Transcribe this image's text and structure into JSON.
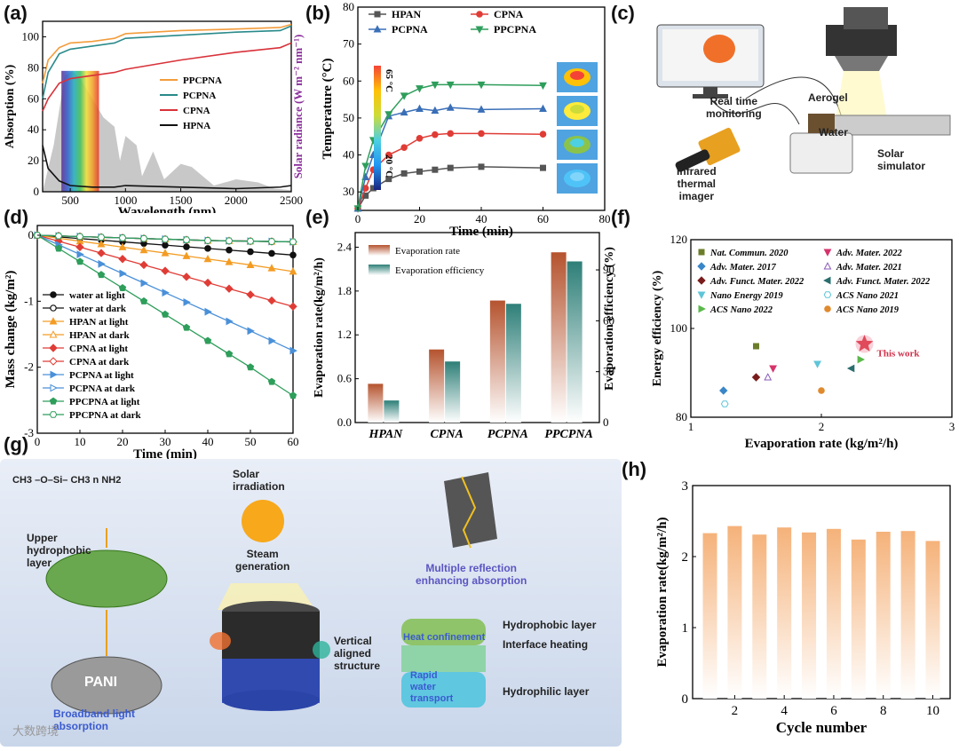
{
  "panels": {
    "a": "(a)",
    "b": "(b)",
    "c": "(c)",
    "d": "(d)",
    "e": "(e)",
    "f": "(f)",
    "g": "(g)",
    "h": "(h)"
  },
  "colors": {
    "hpan": "#555555",
    "cpna": "#e03c36",
    "pcpna": "#3a6fb7",
    "ppcpna": "#2e9e5b",
    "panel_a_ppcpna": "#f39c3c",
    "panel_a_pcpna": "#2a8a8a",
    "panel_a_cpna": "#d9323a",
    "panel_a_hpna": "#111111",
    "solar": "#9b9b9b",
    "bar_e1": "#b5532e",
    "bar_e2": "#2e7f78",
    "bar_h": "#f5b27a",
    "accent_purple": "#8b2f9c"
  },
  "schematic_c": {
    "labels": [
      "Real time",
      "monitoring",
      "Aerogel",
      "Water",
      "Infrared",
      "thermal",
      "imager",
      "Solar",
      "simulator"
    ]
  },
  "schematic_g": {
    "formula": [
      "CH3",
      "–O–Si–",
      "CH3",
      "n",
      "NH2"
    ],
    "labels": [
      "Upper",
      "hydrophobic",
      "layer",
      "Solar",
      "irradiation",
      "Steam",
      "generation",
      "Vertical",
      "aligned",
      "structure",
      "Multiple reflection",
      "enhancing absorption",
      "Hydrophobic layer",
      "Heat confinement",
      "Interface heating",
      "Rapid",
      "water",
      "transport",
      "Hydrophilic layer",
      "Broadband light",
      "absorption",
      "PANI"
    ]
  },
  "watermark": "大数跨境",
  "chart_data": [
    {
      "panel": "a",
      "type": "line",
      "xlabel": "Wavelength (nm)",
      "ylabel": "Absorption (%)",
      "y2label": "Solar radiance (W m⁻² nm⁻¹)",
      "xlim": [
        250,
        2500
      ],
      "ylim": [
        0,
        110
      ],
      "xticks": [
        500,
        1000,
        1500,
        2000,
        2500
      ],
      "yticks": [
        0,
        20,
        40,
        60,
        80,
        100
      ],
      "series": [
        {
          "name": "PPCPNA",
          "x": [
            250,
            300,
            400,
            500,
            700,
            900,
            1000,
            1500,
            2000,
            2400,
            2500
          ],
          "values": [
            70,
            85,
            93,
            96,
            97,
            99,
            102,
            104,
            105,
            106,
            108
          ]
        },
        {
          "name": "PCPNA",
          "x": [
            250,
            300,
            400,
            500,
            700,
            900,
            1000,
            1500,
            2000,
            2400,
            2500
          ],
          "values": [
            60,
            77,
            89,
            92,
            94,
            96,
            99,
            101,
            103,
            104,
            107
          ]
        },
        {
          "name": "CPNA",
          "x": [
            250,
            300,
            400,
            500,
            700,
            900,
            1000,
            1500,
            2000,
            2400,
            2500
          ],
          "values": [
            52,
            60,
            70,
            73,
            75,
            77,
            79,
            85,
            90,
            93,
            96
          ]
        },
        {
          "name": "HPNA",
          "x": [
            250,
            300,
            400,
            500,
            700,
            900,
            1000,
            1500,
            2000,
            2400,
            2500
          ],
          "values": [
            30,
            15,
            7,
            4,
            3,
            3,
            4,
            3,
            2,
            3,
            4
          ]
        }
      ],
      "legend": [
        "PPCPNA",
        "PCPNA",
        "CPNA",
        "HPNA"
      ]
    },
    {
      "panel": "b",
      "type": "line",
      "xlabel": "Time (min)",
      "ylabel": "Temperature (°C)",
      "xlim": [
        0,
        80
      ],
      "ylim": [
        25,
        80
      ],
      "xticks": [
        0,
        20,
        40,
        60,
        80
      ],
      "yticks": [
        30,
        40,
        50,
        60,
        70,
        80
      ],
      "x": [
        0,
        2.5,
        5,
        10,
        15,
        20,
        25,
        30,
        40,
        60
      ],
      "series": [
        {
          "name": "HPAN",
          "values": [
            25.5,
            29,
            31,
            33.5,
            35,
            35.5,
            36,
            36.5,
            36.8,
            36.5
          ]
        },
        {
          "name": "CPNA",
          "values": [
            25.5,
            31,
            36,
            40,
            42,
            44.5,
            45.5,
            45.8,
            45.8,
            45.6
          ]
        },
        {
          "name": "PCPNA",
          "values": [
            25.5,
            34,
            40,
            50.5,
            51.5,
            52.5,
            52,
            52.8,
            52.3,
            52.5
          ]
        },
        {
          "name": "PPCPNA",
          "values": [
            25.5,
            37,
            44,
            51,
            56,
            58,
            59,
            59,
            59,
            58.8
          ]
        }
      ],
      "colorbar": {
        "max": "65 °C",
        "min": "20 °C"
      }
    },
    {
      "panel": "d",
      "type": "line",
      "xlabel": "Time (min)",
      "ylabel": "Mass change (kg/m²)",
      "xlim": [
        0,
        60
      ],
      "ylim": [
        -3,
        0
      ],
      "xticks": [
        0,
        10,
        20,
        30,
        40,
        50,
        60
      ],
      "yticks": [
        0,
        -1,
        -2,
        -3
      ],
      "x": [
        0,
        5,
        10,
        15,
        20,
        25,
        30,
        35,
        40,
        45,
        50,
        55,
        60
      ],
      "series": [
        {
          "name": "water at light",
          "values": [
            0,
            -0.025,
            -0.05,
            -0.075,
            -0.1,
            -0.125,
            -0.15,
            -0.175,
            -0.2,
            -0.225,
            -0.25,
            -0.275,
            -0.3
          ]
        },
        {
          "name": "water at dark",
          "values": [
            0,
            -0.01,
            -0.02,
            -0.03,
            -0.04,
            -0.05,
            -0.06,
            -0.07,
            -0.08,
            -0.085,
            -0.09,
            -0.095,
            -0.1
          ]
        },
        {
          "name": "HPAN at light",
          "values": [
            0,
            -0.045,
            -0.09,
            -0.135,
            -0.18,
            -0.225,
            -0.27,
            -0.315,
            -0.36,
            -0.405,
            -0.45,
            -0.5,
            -0.55
          ]
        },
        {
          "name": "HPAN at dark",
          "values": [
            0,
            -0.01,
            -0.02,
            -0.03,
            -0.04,
            -0.05,
            -0.06,
            -0.07,
            -0.08,
            -0.085,
            -0.09,
            -0.095,
            -0.1
          ]
        },
        {
          "name": "CPNA at light",
          "values": [
            0,
            -0.09,
            -0.18,
            -0.27,
            -0.36,
            -0.45,
            -0.54,
            -0.63,
            -0.72,
            -0.81,
            -0.9,
            -0.99,
            -1.08
          ]
        },
        {
          "name": "CPNA at dark",
          "values": [
            0,
            -0.01,
            -0.02,
            -0.03,
            -0.04,
            -0.05,
            -0.06,
            -0.07,
            -0.08,
            -0.085,
            -0.09,
            -0.095,
            -0.1
          ]
        },
        {
          "name": "PCPNA at light",
          "values": [
            0,
            -0.145,
            -0.29,
            -0.435,
            -0.58,
            -0.725,
            -0.87,
            -1.015,
            -1.16,
            -1.305,
            -1.45,
            -1.6,
            -1.75
          ]
        },
        {
          "name": "PCPNA at dark",
          "values": [
            0,
            -0.01,
            -0.02,
            -0.03,
            -0.04,
            -0.05,
            -0.06,
            -0.07,
            -0.08,
            -0.085,
            -0.09,
            -0.095,
            -0.1
          ]
        },
        {
          "name": "PPCPNA at light",
          "values": [
            0,
            -0.2,
            -0.4,
            -0.6,
            -0.8,
            -1.0,
            -1.2,
            -1.4,
            -1.6,
            -1.8,
            -2.0,
            -2.22,
            -2.43
          ]
        },
        {
          "name": "PPCPNA at dark",
          "values": [
            0,
            -0.01,
            -0.02,
            -0.03,
            -0.04,
            -0.05,
            -0.06,
            -0.07,
            -0.08,
            -0.085,
            -0.09,
            -0.095,
            -0.1
          ]
        }
      ]
    },
    {
      "panel": "e",
      "type": "bar",
      "ylabel": "Evaporation rate(kg/m²/h)",
      "y2label": "Evaporation efficiency (%)",
      "categories": [
        "HPAN",
        "CPNA",
        "PCPNA",
        "PPCPNA"
      ],
      "ylim": [
        0,
        2.6
      ],
      "y2lim": [
        0,
        112
      ],
      "yticks": [
        0,
        0.6,
        1.2,
        1.8,
        2.4
      ],
      "y2ticks": [
        0,
        30,
        60,
        90
      ],
      "series": [
        {
          "name": "Evaporation rate",
          "values": [
            0.53,
            1.0,
            1.67,
            2.33
          ]
        },
        {
          "name": "Evaporation efficiency",
          "values": [
            13,
            36,
            70,
            95
          ]
        }
      ]
    },
    {
      "panel": "f",
      "type": "scatter",
      "xlabel": "Evaporation rate (kg/m²/h)",
      "ylabel": "Energy efficiency (%)",
      "xlim": [
        1,
        3
      ],
      "ylim": [
        80,
        120
      ],
      "xticks": [
        1,
        2,
        3
      ],
      "yticks": [
        80,
        100,
        120
      ],
      "points": [
        {
          "name": "Nat. Commun. 2020",
          "x": 1.5,
          "y": 96
        },
        {
          "name": "Adv. Mater. 2017",
          "x": 1.25,
          "y": 86
        },
        {
          "name": "Adv. Funct. Mater. 2022",
          "x": 1.5,
          "y": 89
        },
        {
          "name": "Nano Energy 2019",
          "x": 1.97,
          "y": 92
        },
        {
          "name": "ACS Nano 2022",
          "x": 2.3,
          "y": 93
        },
        {
          "name": "Adv. Mater. 2022",
          "x": 1.63,
          "y": 91
        },
        {
          "name": "Adv. Mater. 2021",
          "x": 1.59,
          "y": 89
        },
        {
          "name": "Adv. Funct. Mater. 2022",
          "x": 2.23,
          "y": 91
        },
        {
          "name": "ACS Nano 2021",
          "x": 1.26,
          "y": 83
        },
        {
          "name": "ACS Nano 2019",
          "x": 2.0,
          "y": 86
        },
        {
          "name": "This work",
          "x": 2.33,
          "y": 96.5
        }
      ],
      "annotation": "This work"
    },
    {
      "panel": "h",
      "type": "bar",
      "xlabel": "Cycle number",
      "ylabel": "Evaporation rate(kg/m²/h)",
      "ylim": [
        0,
        3
      ],
      "yticks": [
        0,
        1,
        2,
        3
      ],
      "xticks": [
        2,
        4,
        6,
        8,
        10
      ],
      "categories": [
        1,
        2,
        3,
        4,
        5,
        6,
        7,
        8,
        9,
        10
      ],
      "values": [
        2.33,
        2.43,
        2.31,
        2.41,
        2.34,
        2.39,
        2.24,
        2.35,
        2.36,
        2.22
      ]
    }
  ]
}
